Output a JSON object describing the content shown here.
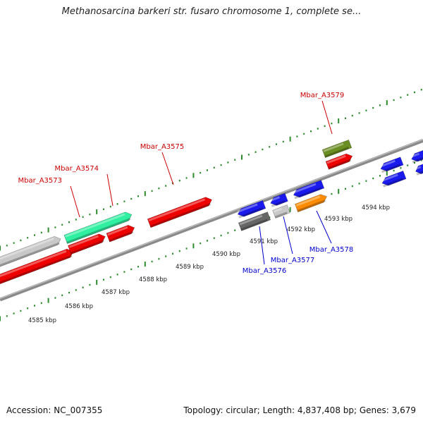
{
  "title": "Methanosarcina barkeri str. fusaro chromosome 1, complete se...",
  "footer": {
    "accession": "Accession: NC_007355",
    "summary": "Topology: circular; Length: 4,837,408 bp; Genes: 3,679"
  },
  "colors": {
    "label_forward": "#cc0000",
    "label_reverse": "#0000cc",
    "ruler_dots": "#2e8b2e",
    "backbone": "#8a8a8a"
  },
  "scale_labels": [
    "4585 kbp",
    "4586 kbp",
    "4587 kbp",
    "4588 kbp",
    "4589 kbp",
    "4590 kbp",
    "4591 kbp",
    "4592 kbp",
    "4593 kbp",
    "4594 kbp"
  ],
  "features": [
    {
      "strand": "+",
      "color": "#c8c8c8",
      "direction": "right"
    },
    {
      "strand": "+",
      "color": "#2ef0a0",
      "direction": "right"
    },
    {
      "strand": "+",
      "color": "#ee0000",
      "direction": "right"
    },
    {
      "strand": "+",
      "color": "#ee0000",
      "direction": "right"
    },
    {
      "strand": "+",
      "color": "#ee0000",
      "direction": "right"
    },
    {
      "strand": "+",
      "color": "#ee0000",
      "direction": "right"
    },
    {
      "strand": "+",
      "color": "#6b8e23",
      "direction": "none"
    },
    {
      "strand": "+",
      "color": "#ee0000",
      "direction": "right"
    },
    {
      "strand": "-",
      "color": "#1a1aee",
      "direction": "left"
    },
    {
      "strand": "-",
      "color": "#666666",
      "direction": "none"
    },
    {
      "strand": "-",
      "color": "#1a1aee",
      "direction": "left"
    },
    {
      "strand": "-",
      "color": "#c8c8c8",
      "direction": "none"
    },
    {
      "strand": "-",
      "color": "#1a1aee",
      "direction": "left"
    },
    {
      "strand": "-",
      "color": "#ff8c00",
      "direction": "right"
    },
    {
      "strand": "-",
      "color": "#1a1aee",
      "direction": "left"
    },
    {
      "strand": "-",
      "color": "#1a1aee",
      "direction": "left"
    },
    {
      "strand": "-",
      "color": "#1a1aee",
      "direction": "left"
    },
    {
      "strand": "-",
      "color": "#1a1aee",
      "direction": "left"
    }
  ],
  "gene_labels": [
    {
      "text": "Mbar_A3573",
      "strand": "+"
    },
    {
      "text": "Mbar_A3574",
      "strand": "+"
    },
    {
      "text": "Mbar_A3575",
      "strand": "+"
    },
    {
      "text": "Mbar_A3579",
      "strand": "+"
    },
    {
      "text": "Mbar_A3576",
      "strand": "-"
    },
    {
      "text": "Mbar_A3577",
      "strand": "-"
    },
    {
      "text": "Mbar_A3578",
      "strand": "-"
    }
  ]
}
